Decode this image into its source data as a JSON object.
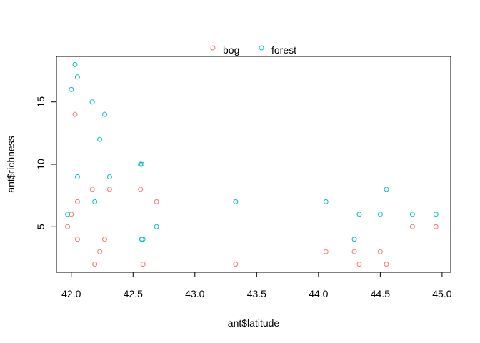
{
  "chart_data": {
    "type": "scatter",
    "title": "",
    "xlabel": "ant$latitude",
    "ylabel": "ant$richness",
    "xlim": [
      41.88,
      45.07
    ],
    "ylim": [
      1.35,
      18.65
    ],
    "xticks": [
      "42.0",
      "42.5",
      "43.0",
      "43.5",
      "44.0",
      "44.5",
      "45.0"
    ],
    "yticks": [
      "5",
      "10",
      "15"
    ],
    "grid": false,
    "legend_position": "top",
    "series": [
      {
        "name": "bog",
        "color": "#F8766D",
        "marker": "open-circle",
        "points": [
          [
            41.97,
            5
          ],
          [
            42.0,
            6
          ],
          [
            42.03,
            14
          ],
          [
            42.05,
            7
          ],
          [
            42.05,
            4
          ],
          [
            42.17,
            8
          ],
          [
            42.19,
            2
          ],
          [
            42.23,
            3
          ],
          [
            42.27,
            4
          ],
          [
            42.31,
            8
          ],
          [
            42.56,
            8
          ],
          [
            42.57,
            4
          ],
          [
            42.58,
            2
          ],
          [
            42.69,
            7
          ],
          [
            43.33,
            2
          ],
          [
            44.06,
            3
          ],
          [
            44.29,
            3
          ],
          [
            44.33,
            2
          ],
          [
            44.5,
            3
          ],
          [
            44.55,
            2
          ],
          [
            44.76,
            5
          ],
          [
            44.95,
            5
          ]
        ]
      },
      {
        "name": "forest",
        "color": "#00BFC4",
        "marker": "open-circle",
        "points": [
          [
            41.97,
            6
          ],
          [
            42.0,
            16
          ],
          [
            42.03,
            18
          ],
          [
            42.05,
            17
          ],
          [
            42.05,
            9
          ],
          [
            42.17,
            15
          ],
          [
            42.19,
            7
          ],
          [
            42.23,
            12
          ],
          [
            42.27,
            14
          ],
          [
            42.31,
            9
          ],
          [
            42.56,
            10
          ],
          [
            42.57,
            10
          ],
          [
            42.57,
            4
          ],
          [
            42.58,
            4
          ],
          [
            42.69,
            5
          ],
          [
            43.33,
            7
          ],
          [
            44.06,
            7
          ],
          [
            44.29,
            4
          ],
          [
            44.33,
            6
          ],
          [
            44.5,
            6
          ],
          [
            44.55,
            8
          ],
          [
            44.76,
            6
          ],
          [
            44.95,
            6
          ]
        ]
      }
    ]
  }
}
